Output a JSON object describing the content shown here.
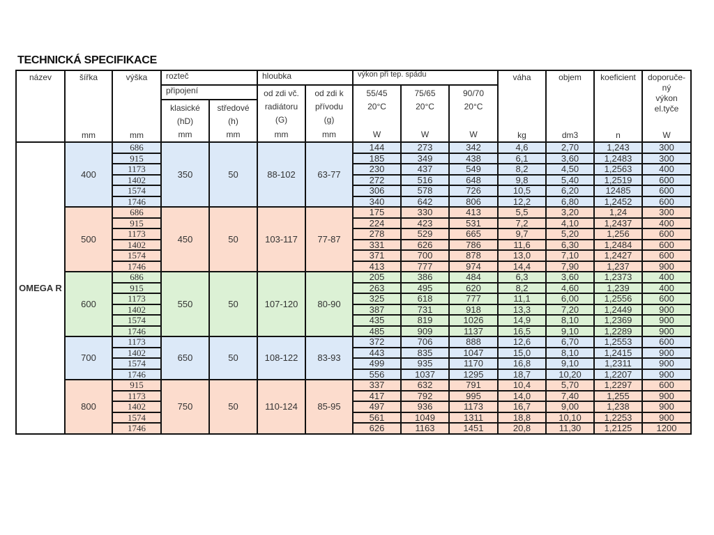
{
  "title": "TECHNICKÁ SPECIFIKACE",
  "colors": {
    "blue": "#dce9f8",
    "salmon": "#fcdccd",
    "green": "#dcf1d5",
    "border": "#111111"
  },
  "header": {
    "nazev": "název",
    "sirka": "šířka",
    "vyska": "výška",
    "roztec": "rozteč",
    "pripojeni": "připojení",
    "klasicke": "klasické",
    "hD": "(hD)",
    "stredove": "středové",
    "h": "(h)",
    "hloubka": "hloubka",
    "od_zdi_vc": "od zdi  vč.",
    "radiatoru": "radiátoru",
    "G": "(G)",
    "od_zdi_k": "od zdi  k",
    "privodu": "přívodu",
    "g": "(g)",
    "vykon": "výkon při tep. spádu",
    "t1": "55/45",
    "t2": "75/65",
    "t3": "90/70",
    "temp": "20°C",
    "vaha": "váha",
    "objem": "objem",
    "koeficient": "koeficient",
    "doporuceny": [
      "doporuče-",
      "ný",
      "výkon",
      "el.tyče"
    ],
    "units": {
      "sirka": "mm",
      "vyska": "mm",
      "klasicke": "mm",
      "stredove": "mm",
      "od_zdi_vc": "mm",
      "od_zdi_k": "mm",
      "t1": "W",
      "t2": "W",
      "t3": "W",
      "vaha": "kg",
      "objem": "dm3",
      "koeficient": "n",
      "doporuceny": "W"
    }
  },
  "model": "OMEGA R",
  "groups": [
    {
      "sirka": "400",
      "klasicke": "350",
      "stredove": "50",
      "od_zdi_vc": "88-102",
      "od_zdi_k": "63-77",
      "color": "blue",
      "rows": [
        [
          "686",
          "144",
          "273",
          "342",
          "4,6",
          "2,70",
          "1,243",
          "300"
        ],
        [
          "915",
          "185",
          "349",
          "438",
          "6,1",
          "3,60",
          "1,2483",
          "300"
        ],
        [
          "1173",
          "230",
          "437",
          "549",
          "8,2",
          "4,50",
          "1,2563",
          "400"
        ],
        [
          "1402",
          "272",
          "516",
          "648",
          "9,8",
          "5,40",
          "1,2519",
          "600"
        ],
        [
          "1574",
          "306",
          "578",
          "726",
          "10,5",
          "6,20",
          "12485",
          "600"
        ],
        [
          "1746",
          "340",
          "642",
          "806",
          "12,2",
          "6,80",
          "1,2452",
          "600"
        ]
      ]
    },
    {
      "sirka": "500",
      "klasicke": "450",
      "stredove": "50",
      "od_zdi_vc": "103-117",
      "od_zdi_k": "77-87",
      "color": "salmon",
      "rows": [
        [
          "686",
          "175",
          "330",
          "413",
          "5,5",
          "3,20",
          "1,24",
          "300"
        ],
        [
          "915",
          "224",
          "423",
          "531",
          "7,2",
          "4,10",
          "1,2437",
          "400"
        ],
        [
          "1173",
          "278",
          "529",
          "665",
          "9,7",
          "5,20",
          "1,256",
          "600"
        ],
        [
          "1402",
          "331",
          "626",
          "786",
          "11,6",
          "6,30",
          "1,2484",
          "600"
        ],
        [
          "1574",
          "371",
          "700",
          "878",
          "13,0",
          "7,10",
          "1,2427",
          "600"
        ],
        [
          "1746",
          "413",
          "777",
          "974",
          "14,4",
          "7,90",
          "1,237",
          "900"
        ]
      ]
    },
    {
      "sirka": "600",
      "klasicke": "550",
      "stredove": "50",
      "od_zdi_vc": "107-120",
      "od_zdi_k": "80-90",
      "color": "green",
      "rows": [
        [
          "686",
          "205",
          "386",
          "484",
          "6,3",
          "3,60",
          "1,2373",
          "400"
        ],
        [
          "915",
          "263",
          "495",
          "620",
          "8,2",
          "4,60",
          "1,239",
          "400"
        ],
        [
          "1173",
          "325",
          "618",
          "777",
          "11,1",
          "6,00",
          "1,2556",
          "600"
        ],
        [
          "1402",
          "387",
          "731",
          "918",
          "13,3",
          "7,20",
          "1,2449",
          "900"
        ],
        [
          "1574",
          "435",
          "819",
          "1026",
          "14,9",
          "8,10",
          "1,2369",
          "900"
        ],
        [
          "1746",
          "485",
          "909",
          "1137",
          "16,5",
          "9,10",
          "1,2289",
          "900"
        ]
      ]
    },
    {
      "sirka": "700",
      "klasicke": "650",
      "stredove": "50",
      "od_zdi_vc": "108-122",
      "od_zdi_k": "83-93",
      "color": "blue",
      "rows": [
        [
          "1173",
          "372",
          "706",
          "888",
          "12,6",
          "6,70",
          "1,2553",
          "600"
        ],
        [
          "1402",
          "443",
          "835",
          "1047",
          "15,0",
          "8,10",
          "1,2415",
          "900"
        ],
        [
          "1574",
          "499",
          "935",
          "1170",
          "16,8",
          "9,10",
          "1,2311",
          "900"
        ],
        [
          "1746",
          "556",
          "1037",
          "1295",
          "18,7",
          "10,20",
          "1,2207",
          "900"
        ]
      ]
    },
    {
      "sirka": "800",
      "klasicke": "750",
      "stredove": "50",
      "od_zdi_vc": "110-124",
      "od_zdi_k": "85-95",
      "color": "salmon",
      "rows": [
        [
          "915",
          "337",
          "632",
          "791",
          "10,4",
          "5,70",
          "1,2297",
          "600"
        ],
        [
          "1173",
          "417",
          "792",
          "995",
          "14,0",
          "7,40",
          "1,255",
          "900"
        ],
        [
          "1402",
          "497",
          "936",
          "1173",
          "16,7",
          "9,00",
          "1,238",
          "900"
        ],
        [
          "1574",
          "561",
          "1049",
          "1311",
          "18,8",
          "10,10",
          "1,2253",
          "900"
        ],
        [
          "1746",
          "626",
          "1163",
          "1451",
          "20,8",
          "11,30",
          "1,2125",
          "1200"
        ]
      ]
    }
  ]
}
